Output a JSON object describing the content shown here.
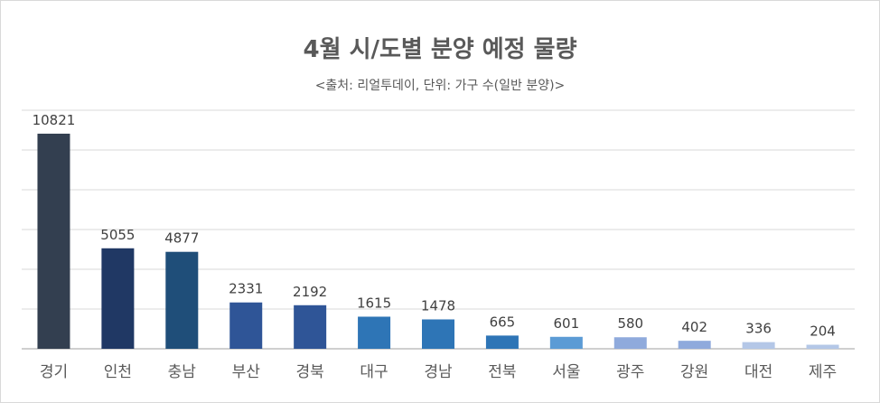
{
  "chart_data": {
    "type": "bar",
    "title": "4월 시/도별 분양 예정 물량",
    "subtitle": "<출처: 리얼투데이, 단위: 가구 수(일반 분양)>",
    "categories": [
      "경기",
      "인천",
      "충남",
      "부산",
      "경북",
      "대구",
      "경남",
      "전북",
      "서울",
      "광주",
      "강원",
      "대전",
      "제주"
    ],
    "values": [
      10821,
      5055,
      4877,
      2331,
      2192,
      1615,
      1478,
      665,
      601,
      580,
      402,
      336,
      204
    ],
    "colors": [
      "#333f50",
      "#203864",
      "#1f4e79",
      "#2f5597",
      "#2f5597",
      "#2e75b6",
      "#2e75b6",
      "#2e75b6",
      "#5b9bd5",
      "#8faadc",
      "#8faadc",
      "#b4c7e7",
      "#b4c7e7"
    ],
    "ylim": [
      0,
      12000
    ],
    "ytick_step": 2000,
    "y_axis_labels_shown": false,
    "grid": true,
    "legend": "none",
    "data_labels": true
  }
}
